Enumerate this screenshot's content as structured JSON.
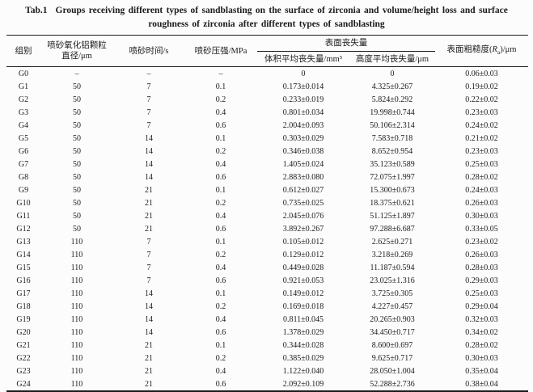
{
  "colors": {
    "text": "#1b1b1b",
    "border": "#1b1b1b",
    "background": "#fcfcfc"
  },
  "title": {
    "tab_label": "Tab.1",
    "line1_rest": "Groups receiving different types of sandblasting on the surface of zirconia and volume/height loss and surface",
    "line2": "roughness of zirconia after different types of sandblasting"
  },
  "table": {
    "header": {
      "group": "组别",
      "particle_line1": "喷砂氧化铝颗粒",
      "particle_line2": "直径/μm",
      "time": "喷砂时间/s",
      "pressure": "喷砂压强/MPa",
      "loss_group": "表面丧失量",
      "volume_loss": "体积平均丧失量/mm³",
      "height_loss": "高度平均丧失量/μm",
      "roughness_prefix": "表面粗糙度(",
      "roughness_symbol": "R",
      "roughness_sub": "a",
      "roughness_suffix": ")/μm"
    },
    "rows": [
      [
        "G0",
        "–",
        "–",
        "–",
        "0",
        "0",
        "0.06±0.03"
      ],
      [
        "G1",
        "50",
        "7",
        "0.1",
        "0.173±0.014",
        "4.325±0.267",
        "0.19±0.02"
      ],
      [
        "G2",
        "50",
        "7",
        "0.2",
        "0.233±0.019",
        "5.824±0.292",
        "0.22±0.02"
      ],
      [
        "G3",
        "50",
        "7",
        "0.4",
        "0.801±0.034",
        "19.998±0.744",
        "0.23±0.03"
      ],
      [
        "G4",
        "50",
        "7",
        "0.6",
        "2.004±0.093",
        "50.106±2.314",
        "0.24±0.02"
      ],
      [
        "G5",
        "50",
        "14",
        "0.1",
        "0.303±0.029",
        "7.583±0.718",
        "0.21±0.02"
      ],
      [
        "G6",
        "50",
        "14",
        "0.2",
        "0.346±0.038",
        "8.652±0.954",
        "0.23±0.03"
      ],
      [
        "G7",
        "50",
        "14",
        "0.4",
        "1.405±0.024",
        "35.123±0.589",
        "0.25±0.03"
      ],
      [
        "G8",
        "50",
        "14",
        "0.6",
        "2.883±0.080",
        "72.075±1.997",
        "0.28±0.02"
      ],
      [
        "G9",
        "50",
        "21",
        "0.1",
        "0.612±0.027",
        "15.300±0.673",
        "0.24±0.03"
      ],
      [
        "G10",
        "50",
        "21",
        "0.2",
        "0.735±0.025",
        "18.375±0.621",
        "0.26±0.03"
      ],
      [
        "G11",
        "50",
        "21",
        "0.4",
        "2.045±0.076",
        "51.125±1.897",
        "0.30±0.03"
      ],
      [
        "G12",
        "50",
        "21",
        "0.6",
        "3.892±0.267",
        "97.288±6.687",
        "0.33±0.05"
      ],
      [
        "G13",
        "110",
        "7",
        "0.1",
        "0.105±0.012",
        "2.625±0.271",
        "0.23±0.02"
      ],
      [
        "G14",
        "110",
        "7",
        "0.2",
        "0.129±0.012",
        "3.218±0.269",
        "0.26±0.03"
      ],
      [
        "G15",
        "110",
        "7",
        "0.4",
        "0.449±0.028",
        "11.187±0.594",
        "0.28±0.03"
      ],
      [
        "G16",
        "110",
        "7",
        "0.6",
        "0.921±0.053",
        "23.025±1.316",
        "0.29±0.03"
      ],
      [
        "G17",
        "110",
        "14",
        "0.1",
        "0.149±0.012",
        "3.725±0.305",
        "0.25±0.03"
      ],
      [
        "G18",
        "110",
        "14",
        "0.2",
        "0.169±0.018",
        "4.227±0.457",
        "0.29±0.04"
      ],
      [
        "G19",
        "110",
        "14",
        "0.4",
        "0.811±0.045",
        "20.265±0.903",
        "0.32±0.03"
      ],
      [
        "G20",
        "110",
        "14",
        "0.6",
        "1.378±0.029",
        "34.450±0.717",
        "0.34±0.02"
      ],
      [
        "G21",
        "110",
        "21",
        "0.1",
        "0.344±0.028",
        "8.600±0.697",
        "0.28±0.02"
      ],
      [
        "G22",
        "110",
        "21",
        "0.2",
        "0.385±0.029",
        "9.625±0.717",
        "0.30±0.03"
      ],
      [
        "G23",
        "110",
        "21",
        "0.4",
        "1.122±0.040",
        "28.050±1.004",
        "0.35±0.04"
      ],
      [
        "G24",
        "110",
        "21",
        "0.6",
        "2.092±0.109",
        "52.288±2.736",
        "0.38±0.04"
      ]
    ]
  }
}
